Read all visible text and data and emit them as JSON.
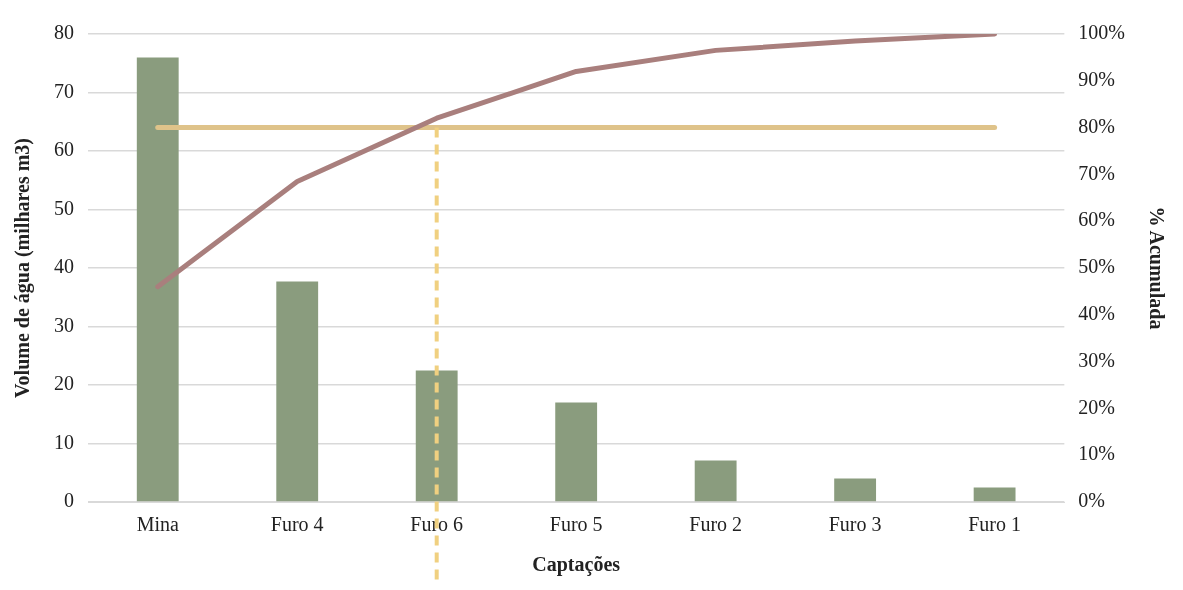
{
  "chart_data": {
    "type": "bar",
    "xlabel": "Captações",
    "ylabel": "Volume de água (milhares m3)",
    "y2label": "% Acumulada",
    "categories": [
      "Mina",
      "Furo 4",
      "Furo 6",
      "Furo 5",
      "Furo 2",
      "Furo 3",
      "Furo 1"
    ],
    "series": [
      {
        "color": "#8a9c7e",
        "values": [
          76,
          37.7,
          22.5,
          17,
          7.1,
          4,
          2.5
        ]
      },
      {
        "type": "line",
        "axis": "y2",
        "color": "#a97f7d",
        "values": [
          46,
          68.5,
          82,
          92,
          96.5,
          98.5,
          100
        ]
      },
      {
        "type": "line",
        "axis": "y2",
        "color": "#dfc38a",
        "values": [
          80,
          80,
          80,
          80,
          80,
          80,
          80
        ]
      }
    ],
    "ylim": [
      0,
      80
    ],
    "yticks": [
      0,
      10,
      20,
      30,
      40,
      50,
      60,
      70,
      80
    ],
    "y2lim": [
      0,
      100
    ],
    "y2ticks": [
      {
        "value": 0,
        "label": "0%"
      },
      {
        "value": 10,
        "label": "10%"
      },
      {
        "value": 20,
        "label": "20%"
      },
      {
        "value": 30,
        "label": "30%"
      },
      {
        "value": 40,
        "label": "40%"
      },
      {
        "value": 50,
        "label": "50%"
      },
      {
        "value": 60,
        "label": "60%"
      },
      {
        "value": 70,
        "label": "70%"
      },
      {
        "value": 80,
        "label": "80%"
      },
      {
        "value": 90,
        "label": "90%"
      },
      {
        "value": 100,
        "label": "100%"
      }
    ],
    "ref_lines": [
      {
        "axis": "x",
        "value": "Furo 6",
        "color": "#f0d080",
        "line_style": "dashed"
      }
    ],
    "grid": "y",
    "legend": false,
    "marker": "none"
  }
}
